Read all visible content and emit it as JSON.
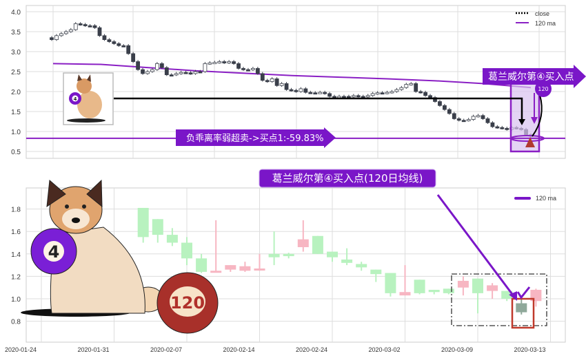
{
  "chart_data": [
    {
      "type": "candlestick",
      "panel": "top",
      "ylim": [
        0.35,
        4.1
      ],
      "yticks": [
        "0.5",
        "1.0",
        "1.5",
        "2.0",
        "2.5",
        "3.0",
        "3.5",
        "4.0"
      ],
      "grid": true,
      "legend": {
        "placement": "top-right",
        "entries": [
          "close",
          "120 ma"
        ]
      },
      "close": [
        3.3,
        3.4,
        3.45,
        3.5,
        3.55,
        3.7,
        3.68,
        3.65,
        3.65,
        3.6,
        3.4,
        3.3,
        3.25,
        3.2,
        3.15,
        3.15,
        2.95,
        2.75,
        2.55,
        2.45,
        2.5,
        2.55,
        2.7,
        2.6,
        2.42,
        2.42,
        2.45,
        2.48,
        2.47,
        2.45,
        2.5,
        2.5,
        2.7,
        2.72,
        2.73,
        2.75,
        2.72,
        2.75,
        2.7,
        2.58,
        2.55,
        2.55,
        2.58,
        2.45,
        2.28,
        2.25,
        2.32,
        2.15,
        2.2,
        2.05,
        2.03,
        2.0,
        2.07,
        1.98,
        1.97,
        1.97,
        1.98,
        1.95,
        1.88,
        1.87,
        1.88,
        1.88,
        1.87,
        1.9,
        1.88,
        1.87,
        1.9,
        1.95,
        1.97,
        1.96,
        1.98,
        2.0,
        2.05,
        2.1,
        2.18,
        2.2,
        2.0,
        1.98,
        1.9,
        1.85,
        1.75,
        1.65,
        1.55,
        1.45,
        1.32,
        1.28,
        1.28,
        1.3,
        1.38,
        1.4,
        1.32,
        1.22,
        1.12,
        1.1,
        1.08,
        1.05,
        1.1,
        1.08,
        1.05,
        0.92,
        0.88
      ],
      "ma120": [
        2.7,
        2.68,
        2.6,
        2.52,
        2.46,
        2.4,
        2.36,
        2.32,
        2.27,
        2.2,
        2.1
      ],
      "support_level": 0.83,
      "reference_level": 1.83,
      "colors": {
        "candle": "#3a3f4a",
        "ma": "#8a1fc4",
        "annotation": "#7a16c8",
        "marker": "#b03a2e"
      },
      "annotations": {
        "oversold": "负乖离率弱超卖->买点1:-59.83%",
        "buy_point": "葛兰威尔第④买入点",
        "ma_badge": "120"
      }
    },
    {
      "type": "candlestick",
      "panel": "bottom",
      "ylim": [
        0.62,
        1.99
      ],
      "yticks": [
        "0.8",
        "1.0",
        "1.2",
        "1.4",
        "1.6",
        "1.8"
      ],
      "xticks": [
        "2020-01-24",
        "2020-01-31",
        "2020-02-07",
        "2020-02-14",
        "2020-02-24",
        "2020-03-02",
        "2020-03-09",
        "2020-03-13"
      ],
      "grid": true,
      "legend": {
        "placement": "top-right",
        "entries": [
          "120 ma"
        ]
      },
      "title": "葛兰威尔第④买入点(120日均线)",
      "colors": {
        "up": "#f7b6c2",
        "down": "#b8f2bf",
        "highlight": "#8fa89a",
        "ma": "#7a16c8",
        "box": "#c0392b"
      },
      "candles": [
        {
          "o": 1.81,
          "c": 1.55,
          "h": 1.81,
          "l": 1.5
        },
        {
          "o": 1.71,
          "c": 1.57,
          "h": 1.71,
          "l": 1.5
        },
        {
          "o": 1.57,
          "c": 1.5,
          "h": 1.63,
          "l": 1.47
        },
        {
          "o": 1.5,
          "c": 1.36,
          "h": 1.55,
          "l": 1.3
        },
        {
          "o": 1.36,
          "c": 1.24,
          "h": 1.4,
          "l": 1.23
        },
        {
          "o": 1.24,
          "c": 1.25,
          "h": 1.7,
          "l": 1.24
        },
        {
          "o": 1.26,
          "c": 1.3,
          "h": 1.3,
          "l": 1.24
        },
        {
          "o": 1.25,
          "c": 1.29,
          "h": 1.33,
          "l": 1.24
        },
        {
          "o": 1.26,
          "c": 1.27,
          "h": 1.4,
          "l": 1.25
        },
        {
          "o": 1.4,
          "c": 1.37,
          "h": 1.6,
          "l": 1.3
        },
        {
          "o": 1.4,
          "c": 1.38,
          "h": 1.41,
          "l": 1.36
        },
        {
          "o": 1.46,
          "c": 1.53,
          "h": 1.7,
          "l": 1.42
        },
        {
          "o": 1.56,
          "c": 1.4,
          "h": 1.56,
          "l": 1.4
        },
        {
          "o": 1.42,
          "c": 1.37,
          "h": 1.42,
          "l": 1.33
        },
        {
          "o": 1.35,
          "c": 1.32,
          "h": 1.45,
          "l": 1.3
        },
        {
          "o": 1.31,
          "c": 1.28,
          "h": 1.33,
          "l": 1.25
        },
        {
          "o": 1.26,
          "c": 1.22,
          "h": 1.26,
          "l": 1.15
        },
        {
          "o": 1.23,
          "c": 1.05,
          "h": 1.23,
          "l": 1.02
        },
        {
          "o": 1.03,
          "c": 1.06,
          "h": 1.3,
          "l": 1.03
        },
        {
          "o": 1.17,
          "c": 1.05,
          "h": 1.17,
          "l": 1.04
        },
        {
          "o": 1.08,
          "c": 1.06,
          "h": 1.08,
          "l": 1.04
        },
        {
          "o": 1.09,
          "c": 1.05,
          "h": 1.09,
          "l": 1.04
        },
        {
          "o": 1.1,
          "c": 1.16,
          "h": 1.2,
          "l": 1.03
        },
        {
          "o": 1.18,
          "c": 1.05,
          "h": 1.18,
          "l": 0.87
        },
        {
          "o": 1.07,
          "c": 1.12,
          "h": 1.14,
          "l": 1.0
        },
        {
          "o": 1.07,
          "c": 1.0,
          "h": 1.07,
          "l": 0.98
        },
        {
          "o": 0.96,
          "c": 0.88,
          "h": 1.03,
          "l": 0.86,
          "highlight": true
        },
        {
          "o": 0.98,
          "c": 1.08,
          "h": 1.09,
          "l": 0.93
        }
      ]
    }
  ],
  "illustration": {
    "ball_small": "4",
    "ball_large": "120"
  }
}
